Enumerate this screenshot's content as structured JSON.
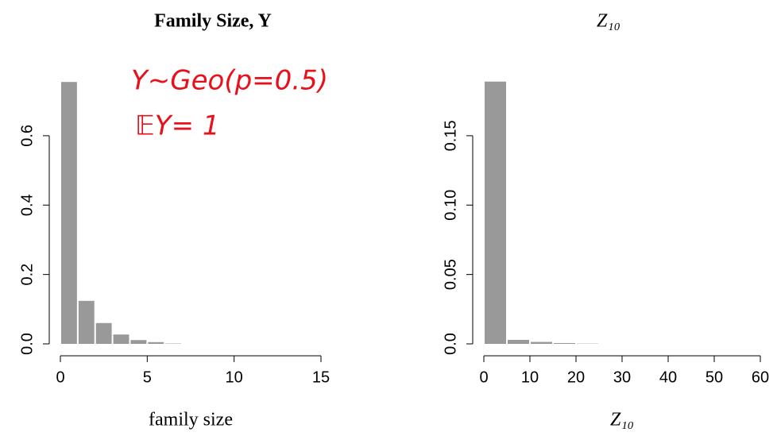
{
  "chart_data": [
    {
      "type": "histogram",
      "title": "Family Size, Y",
      "x_label": "family size",
      "bins": [
        0,
        1,
        2,
        3,
        4,
        5,
        6,
        7
      ],
      "values": [
        0.755,
        0.124,
        0.06,
        0.027,
        0.011,
        0.005,
        0.001
      ],
      "color": "#999999",
      "xlim": [
        0,
        15
      ],
      "xticks": [
        0,
        5,
        10,
        15
      ],
      "ylim": [
        0,
        0.76
      ],
      "yticks": [
        {
          "value": 0,
          "label": "0.0"
        },
        0.2,
        0.4,
        0.6
      ],
      "annotations": [
        "Y~Geo(p=0.5)",
        "𝔼Y= 1"
      ]
    },
    {
      "type": "histogram",
      "title": "Z₁₀",
      "x_label": "Z₁₀",
      "bins": [
        0,
        5,
        10,
        15,
        20,
        25
      ],
      "values": [
        0.189,
        0.0029,
        0.0014,
        0.0006,
        0.0002
      ],
      "color": "#999999",
      "xlim": [
        0,
        60
      ],
      "xticks": [
        0,
        10,
        20,
        30,
        40,
        50,
        60
      ],
      "ylim": [
        0,
        0.19
      ],
      "yticks": [
        {
          "value": 0,
          "label": "0.0"
        },
        0.05,
        {
          "value": 0.1,
          "label": "0.10"
        },
        0.15
      ]
    }
  ]
}
